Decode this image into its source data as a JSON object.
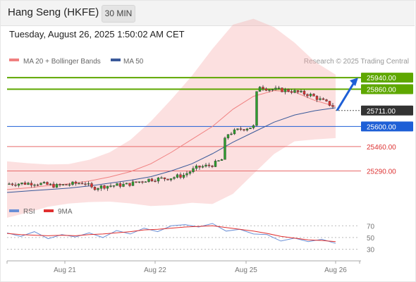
{
  "header": {
    "title": "Hang Seng (HKFE)",
    "timeframe": "30 MIN"
  },
  "datetime": "Tuesday, August 26, 2025 1:50:02 AM CET",
  "credit": "Research © 2025 Trading Central",
  "colors": {
    "resistance": "#5ea700",
    "pivot": "#1e5fd6",
    "support": "#e86a6a",
    "last": "#333333",
    "bollinger": "#f5a7a7",
    "ma20": "#f08080",
    "ma50": "#3a5a9a",
    "up": "#2e9e2e",
    "down": "#d33",
    "rsi": "#6a8fd6",
    "rsi_ma": "#e03030"
  },
  "legend": {
    "ma20_label": "MA 20 + Bollinger Bands",
    "ma50_label": "MA 50",
    "rsi_label": "RSI",
    "rsi_ma_label": "9MA"
  },
  "chart_data": {
    "type": "line",
    "title": "Hang Seng (HKFE)",
    "interval": "30 MIN",
    "ylim": [
      25130,
      25990
    ],
    "x_ticks": [
      "Aug 21",
      "Aug 22",
      "Aug 25",
      "Aug 26"
    ],
    "levels": [
      {
        "label": "25940.00",
        "value": 25940,
        "kind": "resistance"
      },
      {
        "label": "25860.00",
        "value": 25860,
        "kind": "resistance"
      },
      {
        "label": "25711.00",
        "value": 25711,
        "kind": "last"
      },
      {
        "label": "25600.00",
        "value": 25600,
        "kind": "pivot"
      },
      {
        "label": "25460.00",
        "value": 25460,
        "kind": "support"
      },
      {
        "label": "25290.00",
        "value": 25290,
        "kind": "support"
      }
    ],
    "series": [
      {
        "name": "MA 20 + Bollinger Bands",
        "values": [
          25160,
          25172,
          25188,
          25200,
          25220,
          25248,
          25285,
          25340,
          25420,
          25510,
          25600,
          25720,
          25810,
          25850,
          25840,
          25780,
          25740
        ]
      },
      {
        "name": "MA 50",
        "values": [
          25140,
          25150,
          25160,
          25170,
          25185,
          25205,
          25225,
          25250,
          25290,
          25340,
          25410,
          25490,
          25560,
          25630,
          25680,
          25710,
          25730
        ]
      }
    ],
    "rsi": {
      "ticks": [
        70,
        50,
        30
      ],
      "ylim": [
        15,
        80
      ],
      "series": [
        {
          "name": "RSI",
          "values": [
            58,
            52,
            60,
            48,
            55,
            51,
            58,
            50,
            62,
            56,
            66,
            60,
            70,
            72,
            68,
            74,
            61,
            64,
            56,
            55,
            44,
            49,
            43,
            47,
            40
          ]
        },
        {
          "name": "9MA",
          "values": [
            57,
            55,
            54,
            53,
            54,
            53,
            55,
            56,
            58,
            60,
            63,
            64,
            66,
            68,
            69,
            70,
            67,
            64,
            61,
            57,
            52,
            49,
            46,
            45,
            43
          ]
        }
      ]
    }
  }
}
